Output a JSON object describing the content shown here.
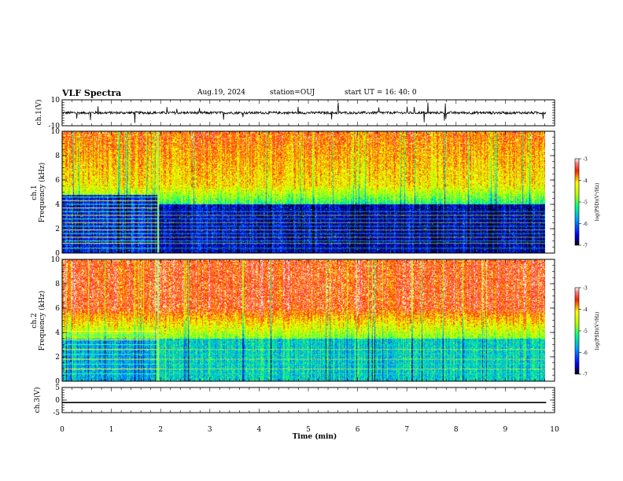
{
  "header": {
    "title": "VLF Spectra",
    "date": "Aug.19, 2024",
    "station": "station=OUJ",
    "start_ut": "start  UT =   16: 40: 0"
  },
  "chart_data": [
    {
      "type": "line",
      "panel": "ch1-waveform",
      "ylabel": "ch.1(V)",
      "ylim": [
        -10,
        10
      ],
      "yticks": [
        10,
        -10
      ],
      "xlim": [
        0,
        10
      ],
      "x_data_end": 9.83,
      "baseline": 0,
      "noise_amplitude": 2.0
    },
    {
      "type": "heatmap",
      "panel": "ch1-spectrogram",
      "ylabel": "ch.1\nFrequency  (kHz)",
      "ylim": [
        0,
        10
      ],
      "yticks": [
        0,
        2,
        4,
        6,
        8,
        10
      ],
      "xlim": [
        0,
        10
      ],
      "x_data_end": 9.83,
      "x_transition": 1.95,
      "colorbar": {
        "label": "log(PSD)(V²/Hz)",
        "range": [
          -7,
          -3
        ],
        "ticks": [
          -3,
          -4,
          -5,
          -6,
          -7
        ]
      },
      "lines_khz_early": [
        0.4,
        0.8,
        1.0,
        1.3,
        1.6,
        1.9,
        2.2,
        2.5,
        2.8,
        3.1,
        3.4,
        3.7,
        4.0,
        4.3,
        4.6
      ],
      "lines_khz_late": [
        0.4,
        0.8,
        1.0,
        1.3,
        1.6,
        1.9,
        2.2,
        2.5,
        2.8,
        3.1,
        3.4
      ]
    },
    {
      "type": "heatmap",
      "panel": "ch2-spectrogram",
      "ylabel": "ch.2\nFrequency  (kHz)",
      "ylim": [
        0,
        10
      ],
      "yticks": [
        0,
        2,
        4,
        6,
        8,
        10
      ],
      "xlim": [
        0,
        10
      ],
      "x_data_end": 9.83,
      "x_transition": 1.95,
      "colorbar": {
        "label": "log(PSD)(V²/Hz)",
        "range": [
          -7,
          -3
        ],
        "ticks": [
          -3,
          -4,
          -5,
          -6,
          -7
        ]
      },
      "lines_khz_early": [
        0.6,
        1.0,
        1.4,
        1.8,
        2.2,
        2.6,
        3.0,
        3.4,
        3.8,
        4.1
      ],
      "lines_khz_late": [
        0.6,
        1.0,
        1.4,
        1.8,
        2.2,
        2.6
      ]
    },
    {
      "type": "line",
      "panel": "ch3-waveform",
      "ylabel": "ch.3(V)",
      "ylim": [
        -5,
        5
      ],
      "yticks": [
        5,
        0,
        -5
      ],
      "xlim": [
        0,
        10
      ],
      "x_data_end": 9.83,
      "baseline": -1.0,
      "xlabel": "Time  (min)",
      "xticks": [
        0,
        1,
        2,
        3,
        4,
        5,
        6,
        7,
        8,
        9,
        10
      ]
    }
  ]
}
